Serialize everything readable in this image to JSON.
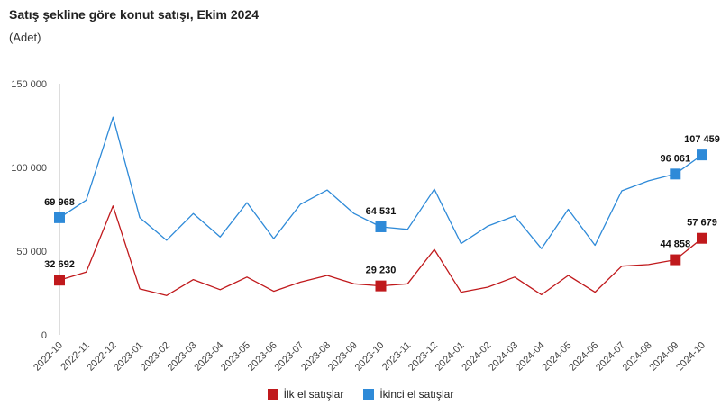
{
  "title": "Satış şekline göre konut satışı, Ekim 2024",
  "subtitle": "(Adet)",
  "colors": {
    "ilk": "#c0191c",
    "ikinci": "#2e8ad8",
    "axis": "#bbbbbb"
  },
  "chart_data": {
    "type": "line",
    "ylim": [
      0,
      150000
    ],
    "y_ticks": [
      0,
      50000,
      100000,
      150000
    ],
    "y_tick_labels": [
      "0",
      "50 000",
      "100 000",
      "150 000"
    ],
    "grid": false,
    "legend_position": "bottom-center",
    "categories": [
      "2022-10",
      "2022-11",
      "2022-12",
      "2023-01",
      "2023-02",
      "2023-03",
      "2023-04",
      "2023-05",
      "2023-06",
      "2023-07",
      "2023-08",
      "2023-09",
      "2023-10",
      "2023-11",
      "2023-12",
      "2024-01",
      "2024-02",
      "2024-03",
      "2024-04",
      "2024-05",
      "2024-06",
      "2024-07",
      "2024-08",
      "2024-09",
      "2024-10"
    ],
    "series": [
      {
        "name": "İlk el satışlar",
        "color": "#c0191c",
        "values": [
          32692,
          37500,
          77000,
          27500,
          23500,
          33000,
          27000,
          34500,
          26000,
          31500,
          35500,
          30500,
          29230,
          30500,
          51000,
          25500,
          28500,
          34500,
          24000,
          35500,
          25500,
          41000,
          42000,
          44858,
          57679
        ],
        "markers": [
          {
            "index": 0,
            "label": "32 692"
          },
          {
            "index": 12,
            "label": "29 230"
          },
          {
            "index": 23,
            "label": "44 858"
          },
          {
            "index": 24,
            "label": "57 679"
          }
        ]
      },
      {
        "name": "İkinci el satışlar",
        "color": "#2e8ad8",
        "values": [
          69968,
          80500,
          130000,
          70000,
          56500,
          72500,
          58500,
          79000,
          57500,
          78000,
          86500,
          72500,
          64531,
          63000,
          87000,
          54500,
          65000,
          71000,
          51500,
          75000,
          53500,
          86000,
          92000,
          96061,
          107459
        ],
        "markers": [
          {
            "index": 0,
            "label": "69 968"
          },
          {
            "index": 12,
            "label": "64 531"
          },
          {
            "index": 23,
            "label": "96 061"
          },
          {
            "index": 24,
            "label": "107 459"
          }
        ]
      }
    ]
  }
}
